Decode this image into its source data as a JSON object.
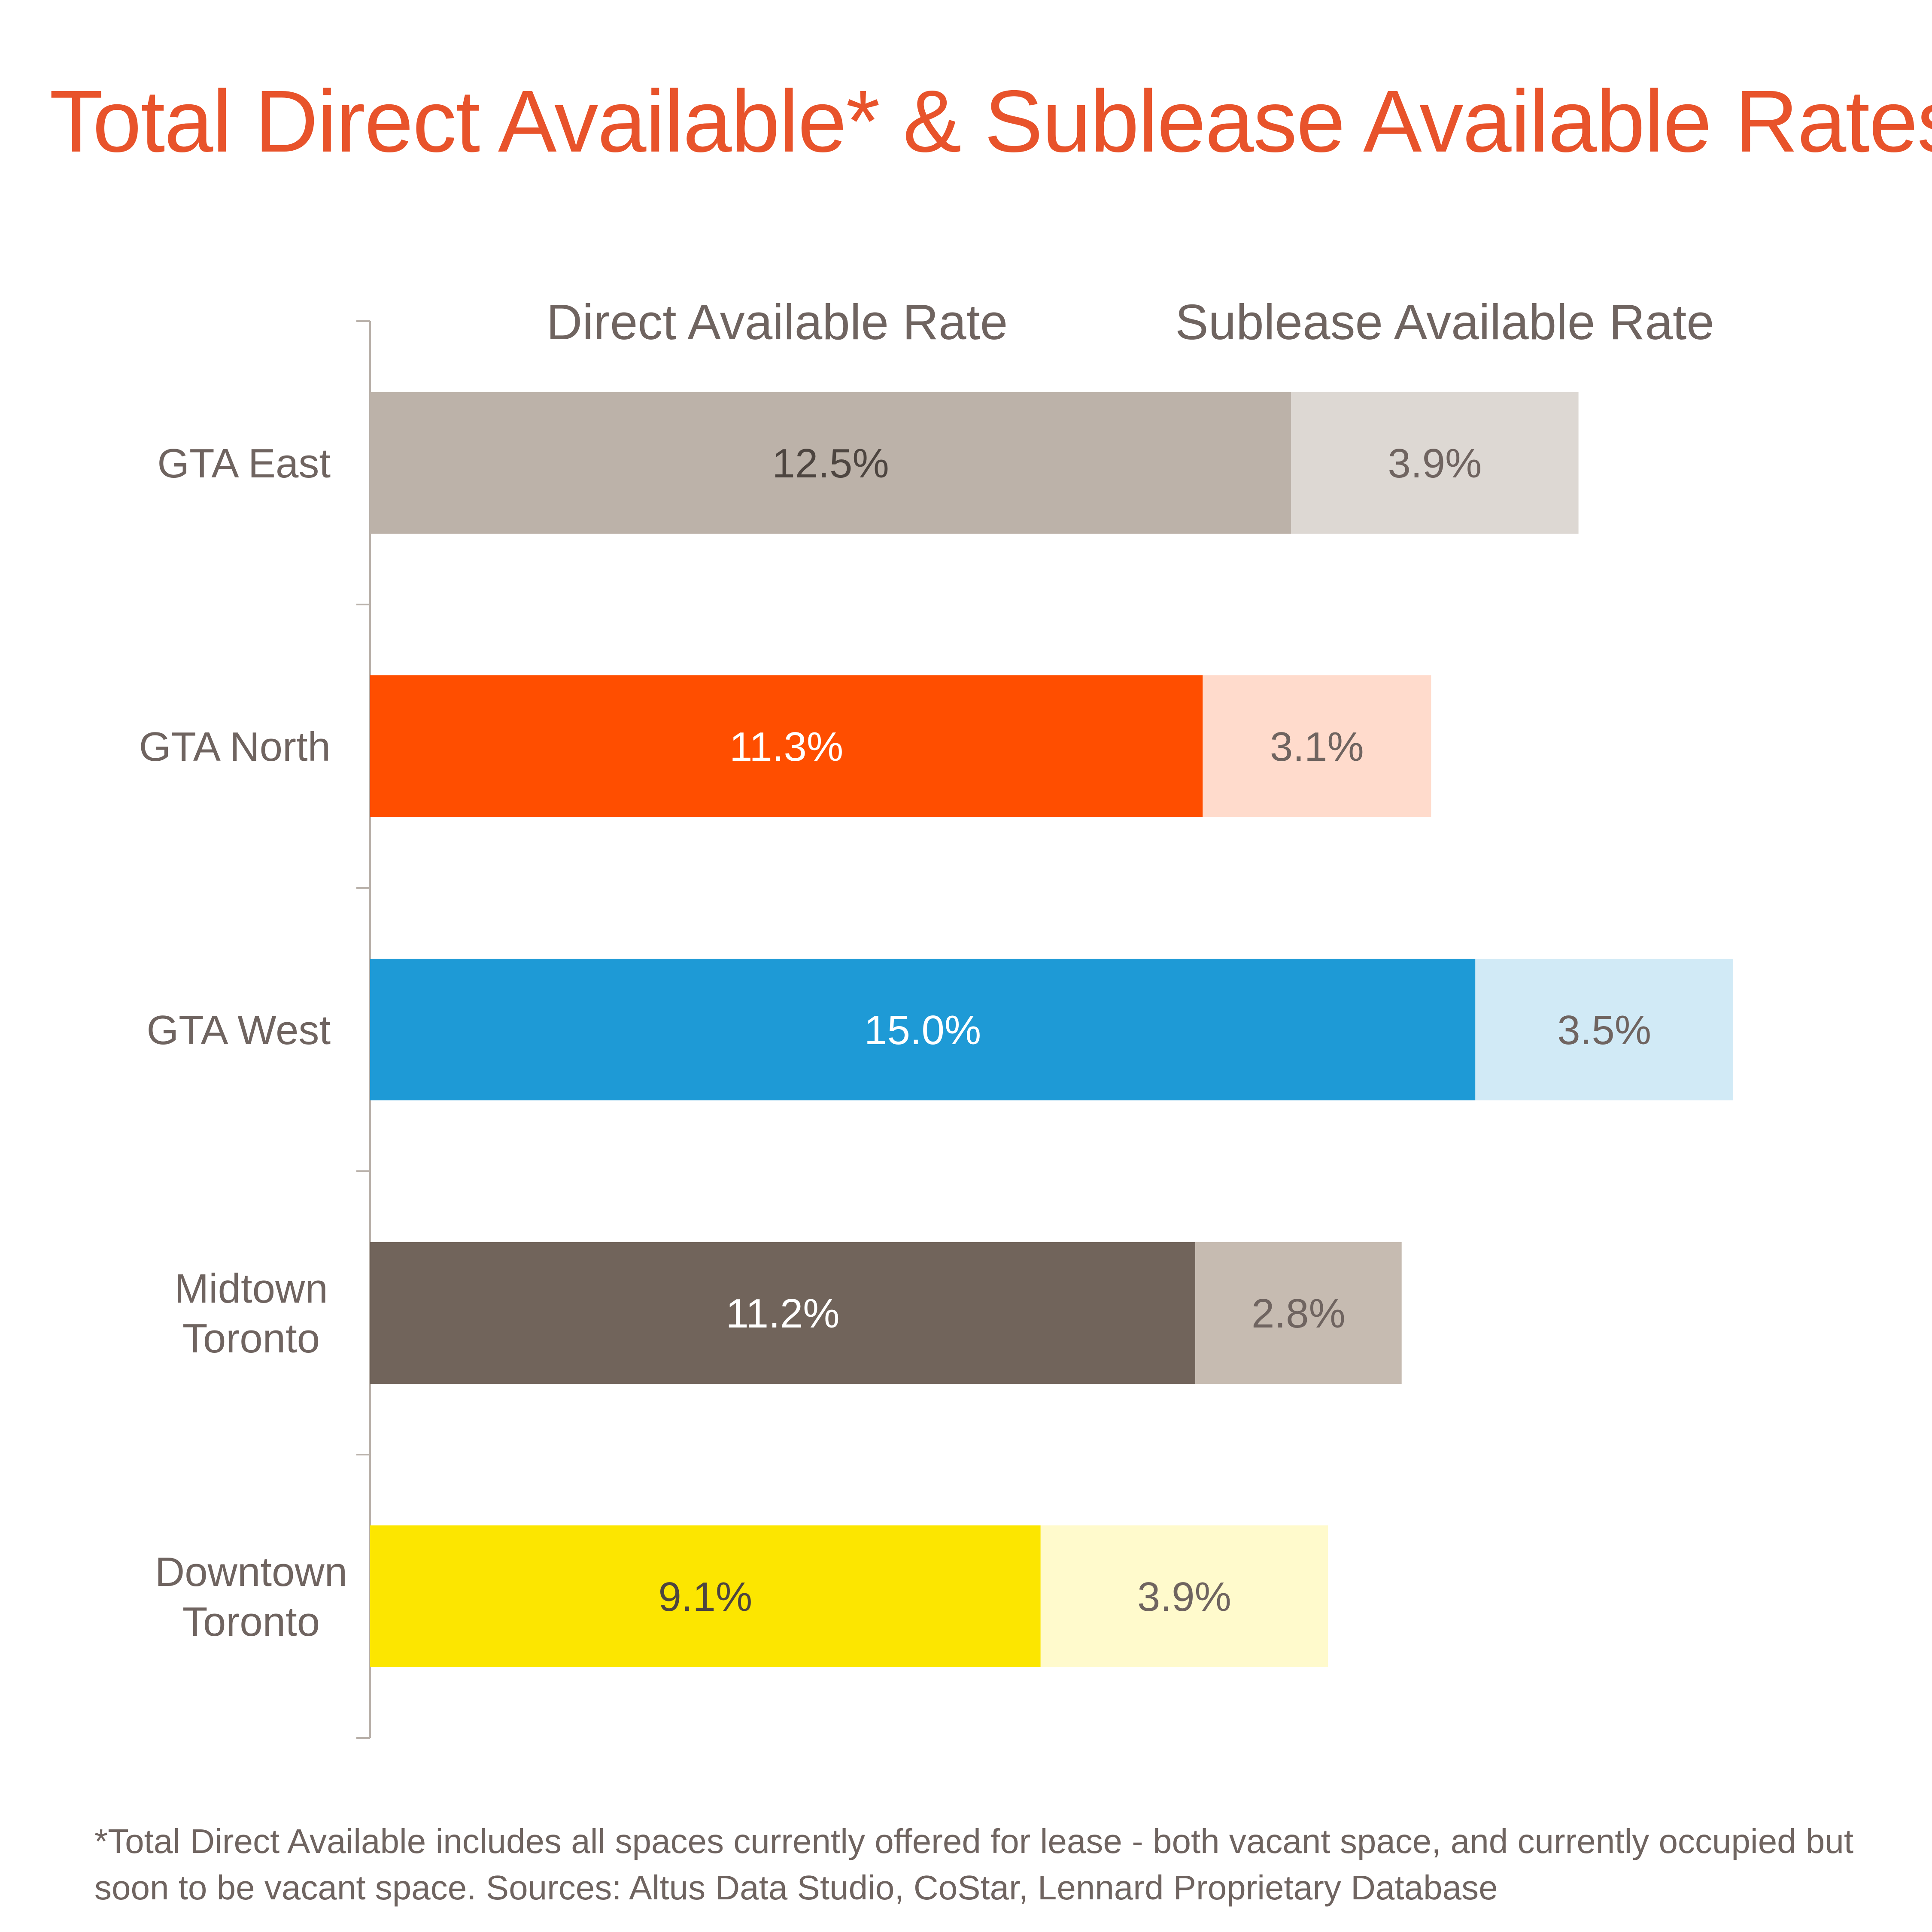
{
  "title": "Total Direct Available* & Sublease Available Rates",
  "footnote": "*Total Direct Available includes all spaces currently offered for lease - both vacant space, and currently occupied but soon to be vacant space. Sources: Altus Data Studio, CoStar, Lennard Proprietary Database",
  "chart_data": {
    "type": "bar",
    "orientation": "horizontal",
    "stacked": true,
    "categories": [
      [
        "GTA East"
      ],
      [
        "GTA North"
      ],
      [
        "GTA West"
      ],
      [
        "Midtown",
        "Toronto"
      ],
      [
        "Downtown",
        "Toronto"
      ]
    ],
    "series": [
      {
        "name": "Direct Available Rate",
        "values": [
          12.5,
          11.3,
          15.0,
          11.2,
          9.1
        ],
        "labels": [
          "12.5%",
          "11.3%",
          "15.0%",
          "11.2%",
          "9.1%"
        ],
        "colors": [
          "#BCB2A9",
          "#FF4E00",
          "#1E9AD6",
          "#71645B",
          "#FCE600"
        ],
        "label_colors": [
          "#4d4540",
          "#ffffff",
          "#ffffff",
          "#ffffff",
          "#4d4540"
        ]
      },
      {
        "name": "Sublease Available Rate",
        "values": [
          3.9,
          3.1,
          3.5,
          2.8,
          3.9
        ],
        "labels": [
          "3.9%",
          "3.1%",
          "3.5%",
          "2.8%",
          "3.9%"
        ],
        "colors": [
          "#DDD8D3",
          "#FFDBCC",
          "#D1EAF6",
          "#C6BBB1",
          "#FFFACC"
        ],
        "label_colors": [
          "#6f6460",
          "#6f6460",
          "#6f6460",
          "#6f6460",
          "#6f6460"
        ]
      }
    ],
    "xlim": [
      0,
      18.5
    ],
    "grid": false,
    "legend": "top"
  }
}
